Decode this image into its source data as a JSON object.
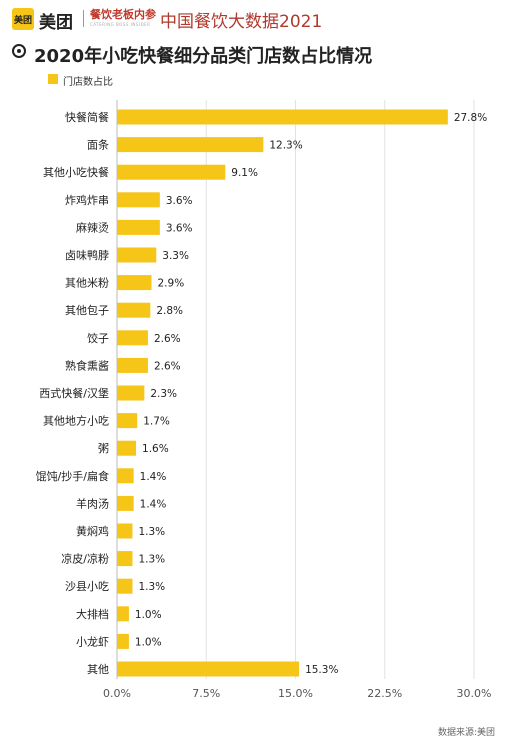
{
  "header": {
    "logo_mark": "美团",
    "brand": "美团",
    "sub_brand": "餐饮老板内参",
    "sub_brand_en": "CATERING BOSS INSIDER",
    "title": "中国餐饮大数据2021"
  },
  "chart_data": {
    "type": "bar",
    "orientation": "horizontal",
    "title": "2020年小吃快餐细分品类门店数占比情况",
    "legend_position": "top-left",
    "grid": true,
    "categories": [
      "快餐简餐",
      "面条",
      "其他小吃快餐",
      "炸鸡炸串",
      "麻辣烫",
      "卤味鸭脖",
      "其他米粉",
      "其他包子",
      "饺子",
      "熟食熏酱",
      "西式快餐/汉堡",
      "其他地方小吃",
      "粥",
      "馄饨/抄手/扁食",
      "羊肉汤",
      "黄焖鸡",
      "凉皮/凉粉",
      "沙县小吃",
      "大排档",
      "小龙虾",
      "其他"
    ],
    "series": [
      {
        "name": "门店数占比",
        "color": "#f5c518",
        "values": [
          27.8,
          12.3,
          9.1,
          3.6,
          3.6,
          3.3,
          2.9,
          2.8,
          2.6,
          2.6,
          2.3,
          1.7,
          1.6,
          1.4,
          1.4,
          1.3,
          1.3,
          1.3,
          1.0,
          1.0,
          15.3
        ],
        "labels": [
          "27.8%",
          "12.3%",
          "9.1%",
          "3.6%",
          "3.6%",
          "3.3%",
          "2.9%",
          "2.8%",
          "2.6%",
          "2.6%",
          "2.3%",
          "1.7%",
          "1.6%",
          "1.4%",
          "1.4%",
          "1.3%",
          "1.3%",
          "1.3%",
          "1.0%",
          "1.0%",
          "15.3%"
        ]
      }
    ],
    "xlim": [
      0,
      30
    ],
    "xticks": [
      0,
      7.5,
      15,
      22.5,
      30
    ],
    "xtick_labels": [
      "0.0%",
      "7.5%",
      "15.0%",
      "22.5%",
      "30.0%"
    ]
  },
  "footer": {
    "source": "数据来源:美团"
  }
}
